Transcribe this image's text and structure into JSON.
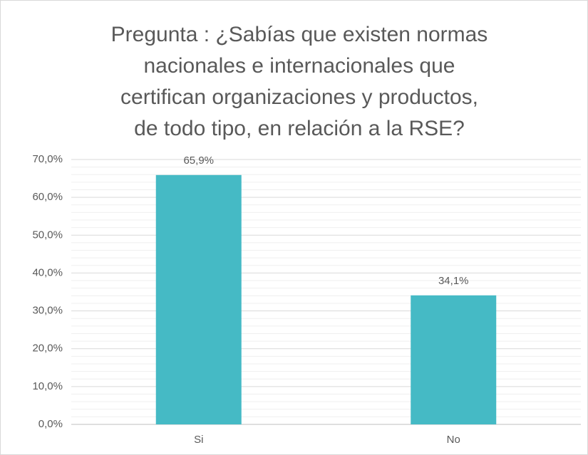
{
  "chart_data": {
    "type": "bar",
    "title": [
      "Pregunta : ¿Sabías que existen normas",
      "nacionales e internacionales que",
      "certifican organizaciones  y productos,",
      "de todo tipo, en relación a la RSE?"
    ],
    "categories": [
      "Si",
      "No"
    ],
    "values": [
      65.9,
      34.1
    ],
    "value_labels": [
      "65,9%",
      "34,1%"
    ],
    "color": "#45bac5",
    "ylim": [
      0,
      70
    ],
    "yticks": [
      {
        "value": 0,
        "label": "0,0%"
      },
      {
        "value": 10,
        "label": "10,0%"
      },
      {
        "value": 20,
        "label": "20,0%"
      },
      {
        "value": 30,
        "label": "30,0%"
      },
      {
        "value": 40,
        "label": "40,0%"
      },
      {
        "value": 50,
        "label": "50,0%"
      },
      {
        "value": 60,
        "label": "60,0%"
      },
      {
        "value": 70,
        "label": "70,0%"
      }
    ],
    "grid": true,
    "minor_grid": true
  }
}
